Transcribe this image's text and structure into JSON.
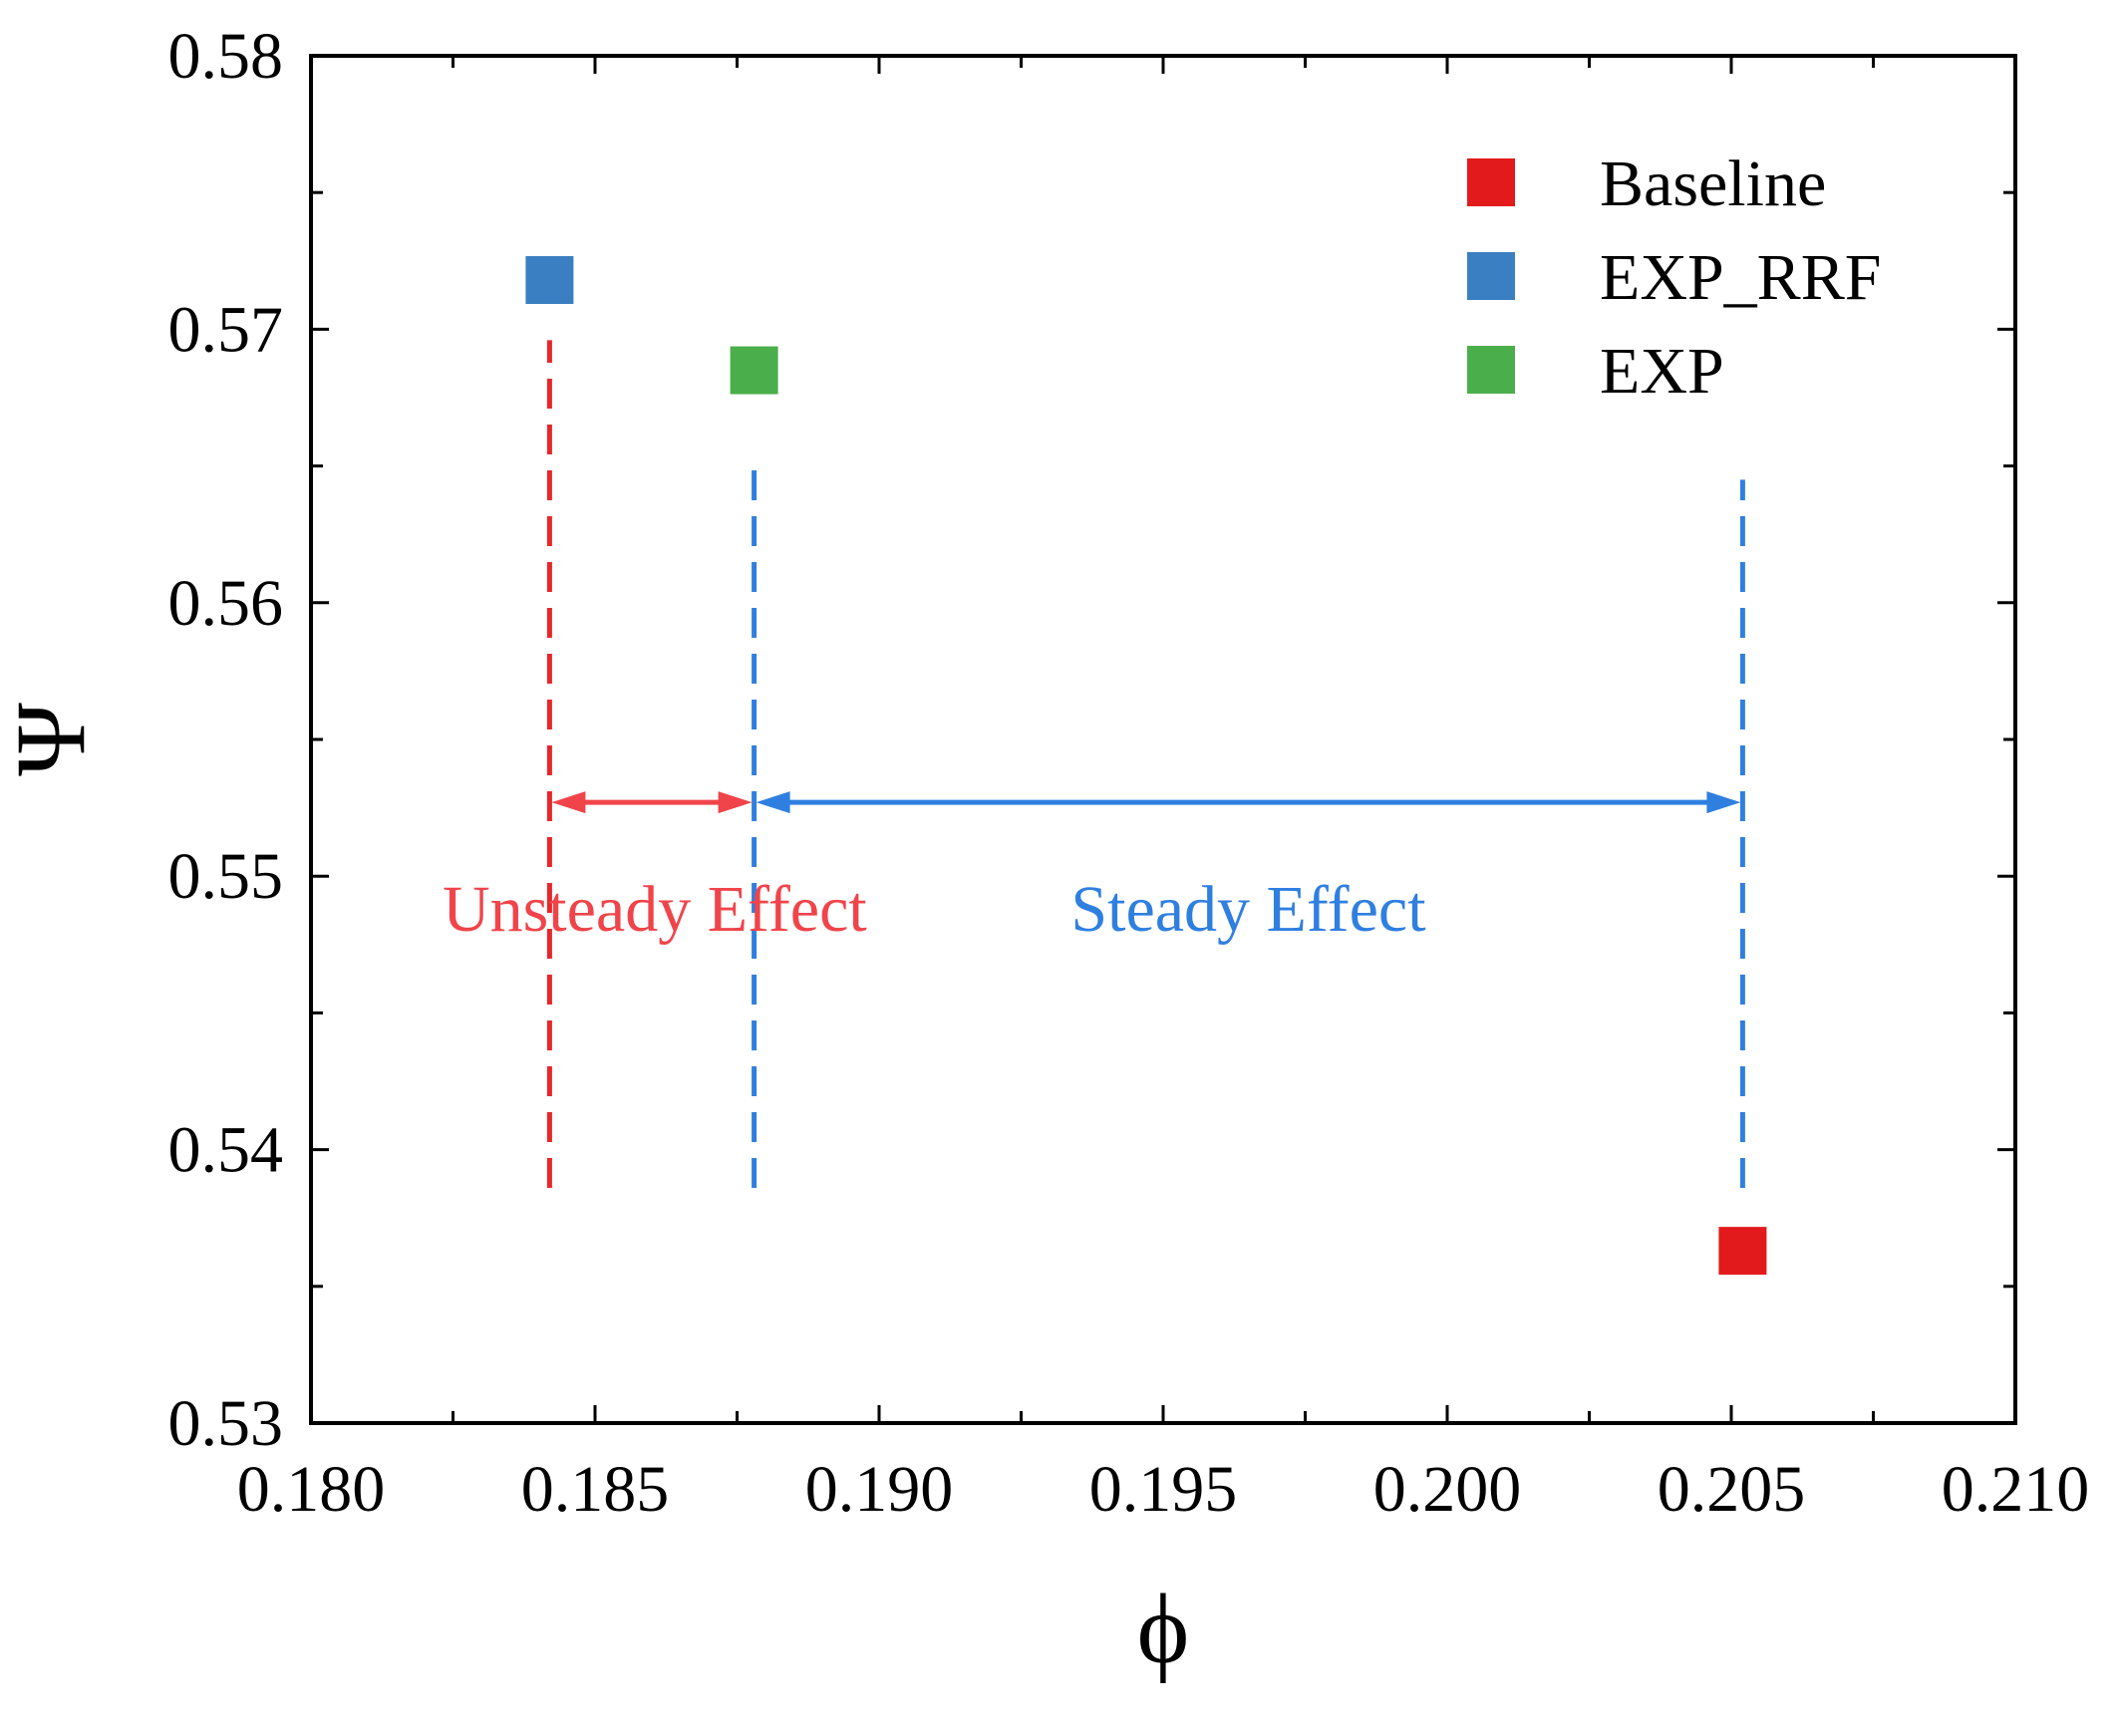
{
  "chart_data": {
    "type": "scatter",
    "title": "",
    "xlabel": "ϕ",
    "ylabel": "Ψ",
    "xlim": [
      0.18,
      0.21
    ],
    "ylim": [
      0.53,
      0.58
    ],
    "x_ticks": [
      "0.180",
      "0.185",
      "0.190",
      "0.195",
      "0.200",
      "0.205",
      "0.210"
    ],
    "y_ticks": [
      "0.53",
      "0.54",
      "0.55",
      "0.56",
      "0.57",
      "0.58"
    ],
    "x_tick_values": [
      0.18,
      0.185,
      0.19,
      0.195,
      0.2,
      0.205,
      0.21
    ],
    "y_tick_values": [
      0.53,
      0.54,
      0.55,
      0.56,
      0.57,
      0.58
    ],
    "x_minor_step": 0.0025,
    "y_minor_step": 0.005,
    "grid": false,
    "legend_position": "top-right",
    "series": [
      {
        "name": "Baseline",
        "color": "#e31a1c",
        "x": [
          0.2052
        ],
        "y": [
          0.5363
        ]
      },
      {
        "name": "EXP_RRF",
        "color": "#3a7fc1",
        "x": [
          0.1842
        ],
        "y": [
          0.5718
        ]
      },
      {
        "name": "EXP",
        "color": "#4aaf4a",
        "x": [
          0.1878
        ],
        "y": [
          0.5685
        ]
      }
    ],
    "reference_lines": [
      {
        "name": "exp-rrf-line",
        "x": 0.1842,
        "y_from": 0.5386,
        "y_to": 0.5696,
        "color": "#e8262a",
        "style": "dashed"
      },
      {
        "name": "exp-line",
        "x": 0.1878,
        "y_from": 0.5386,
        "y_to": 0.5654,
        "color": "#2f7fe0",
        "style": "dashed"
      },
      {
        "name": "baseline-line",
        "x": 0.2052,
        "y_from": 0.5386,
        "y_to": 0.5645,
        "color": "#2f7fe0",
        "style": "dashed"
      }
    ],
    "annotations": [
      {
        "name": "unsteady-effect",
        "text": "Unsteady Effect",
        "x_from": 0.1842,
        "x_to": 0.1878,
        "arrow_y": 0.5527,
        "label_x": 0.18605,
        "label_y": 0.548,
        "color": "#f0444a"
      },
      {
        "name": "steady-effect",
        "text": "Steady Effect",
        "x_from": 0.1878,
        "x_to": 0.2052,
        "arrow_y": 0.5527,
        "label_x": 0.1965,
        "label_y": 0.548,
        "color": "#2f7fe0"
      }
    ]
  }
}
